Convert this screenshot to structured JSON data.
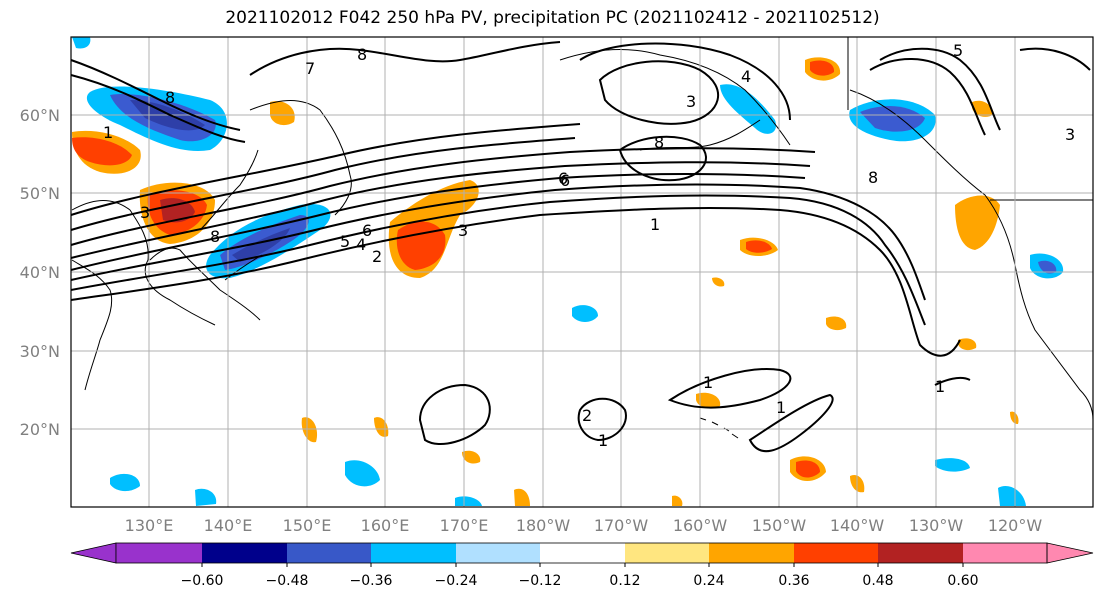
{
  "title": "2021102012 F042 250 hPa PV, precipitation PC (2021102412 - 2021102512)",
  "map": {
    "lat_labels": [
      "60°N",
      "50°N",
      "40°N",
      "30°N",
      "20°N"
    ],
    "lon_labels": [
      "130°E",
      "140°E",
      "150°E",
      "160°E",
      "170°E",
      "180°W",
      "170°W",
      "160°W",
      "150°W",
      "140°W",
      "130°W",
      "120°W"
    ],
    "pv_contour_labels": [
      "8",
      "7",
      "8",
      "6",
      "5",
      "4",
      "3",
      "2",
      "1",
      "1",
      "1",
      "1",
      "1",
      "2",
      "8",
      "6",
      "4",
      "3",
      "8",
      "1",
      "8",
      "5",
      "6",
      "3",
      "3"
    ],
    "precip_colors": {
      "strong_negative": "#2e3fa8",
      "moderate_negative": "#3b5bd0",
      "weak_negative": "#00bfff",
      "very_weak_negative": "#b0e0ff",
      "weak_positive": "#ffe680",
      "moderate_positive": "#ffa500",
      "strong_positive": "#ff4000",
      "very_strong_positive": "#b22222"
    }
  },
  "colorbar": {
    "tick_labels": [
      "−0.60",
      "−0.48",
      "−0.36",
      "−0.24",
      "−0.12",
      "0.12",
      "0.24",
      "0.36",
      "0.48",
      "0.60"
    ],
    "colors": [
      "#9932cc",
      "#00008b",
      "#3858c8",
      "#00bfff",
      "#b0e0ff",
      "#ffffff",
      "#ffe680",
      "#ffa500",
      "#ff4000",
      "#b22222",
      "#ff88b0"
    ]
  }
}
